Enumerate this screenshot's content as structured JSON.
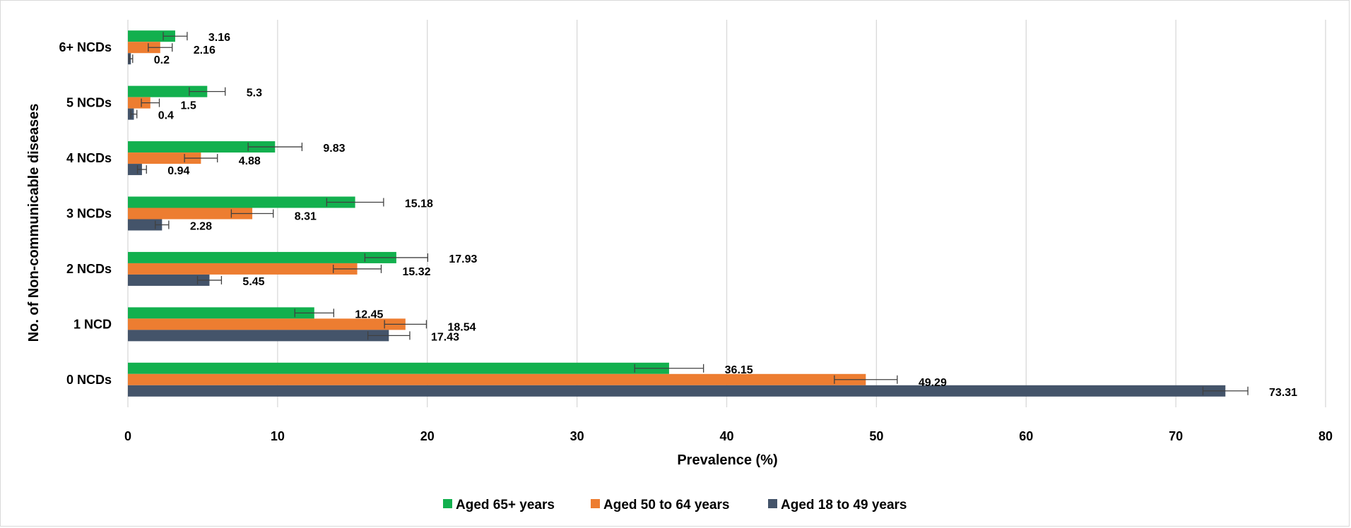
{
  "chart_data": {
    "type": "bar",
    "orientation": "horizontal",
    "categories": [
      "0 NCDs",
      "1 NCD",
      "2 NCDs",
      "3 NCDs",
      "4 NCDs",
      "5 NCDs",
      "6+ NCDs"
    ],
    "series": [
      {
        "name": "Aged 65+ years",
        "color": "#12b04e",
        "values": [
          36.15,
          12.45,
          17.93,
          15.18,
          9.83,
          5.3,
          3.16
        ],
        "value_labels": [
          "36.15",
          "12.45",
          "17.93",
          "15.18",
          "9.83",
          "5.3",
          "3.16"
        ],
        "error": [
          2.3,
          1.3,
          2.1,
          1.9,
          1.8,
          1.2,
          0.8
        ]
      },
      {
        "name": "Aged 50 to 64 years",
        "color": "#ed7d31",
        "values": [
          49.29,
          18.54,
          15.32,
          8.31,
          4.88,
          1.5,
          2.16
        ],
        "value_labels": [
          "49.29",
          "18.54",
          "15.32",
          "8.31",
          "4.88",
          "1.5",
          "2.16"
        ],
        "error": [
          2.1,
          1.4,
          1.6,
          1.4,
          1.1,
          0.6,
          0.8
        ]
      },
      {
        "name": "Aged 18 to 49 years",
        "color": "#44546a",
        "values": [
          73.31,
          17.43,
          5.45,
          2.28,
          0.94,
          0.4,
          0.2
        ],
        "value_labels": [
          "73.31",
          "17.43",
          "5.45",
          "2.28",
          "0.94",
          "0.4",
          "0.2"
        ],
        "error": [
          1.5,
          1.4,
          0.8,
          0.45,
          0.3,
          0.2,
          0.12
        ]
      }
    ],
    "xlabel": "Prevalence (%)",
    "ylabel": "No. of Non-communicable  diseases",
    "xlim": [
      0,
      80
    ],
    "xticks": [
      0,
      10,
      20,
      30,
      40,
      50,
      60,
      70,
      80
    ],
    "grid": "vertical",
    "legend_position": "bottom"
  }
}
